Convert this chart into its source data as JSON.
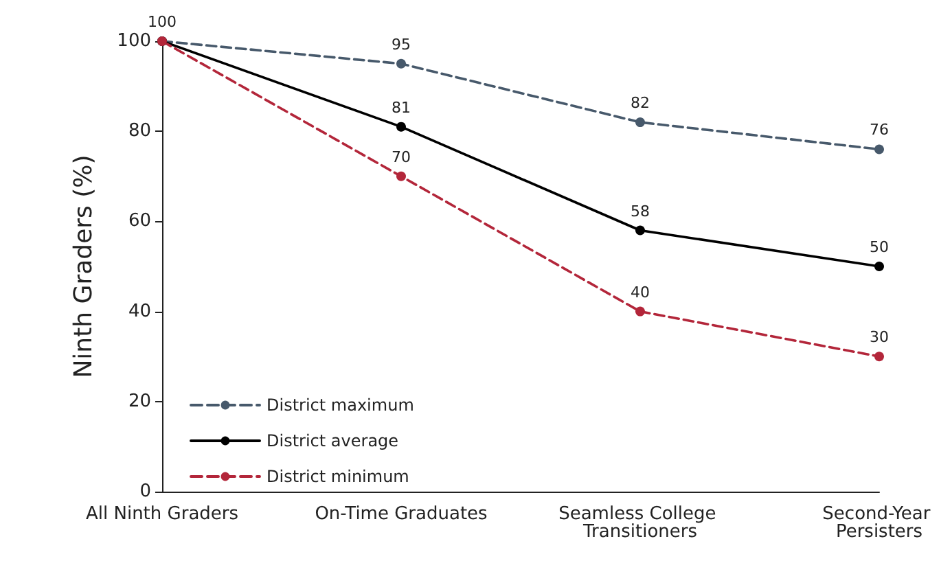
{
  "chart_data": {
    "type": "line",
    "ylabel": "Ninth Graders (%)",
    "categories": [
      "All Ninth Graders",
      "On-Time Graduates",
      "Seamless College Transitioners",
      "Second-Year Persisters"
    ],
    "series": [
      {
        "name": "District maximum",
        "color": "#47596b",
        "line_style": "dashed",
        "values": [
          100,
          95,
          82,
          76
        ],
        "value_labels": [
          "100",
          "95",
          "82",
          "76"
        ]
      },
      {
        "name": "District average",
        "color": "#000000",
        "line_style": "solid",
        "values": [
          100,
          81,
          58,
          50
        ],
        "value_labels": [
          null,
          "81",
          "58",
          "50"
        ]
      },
      {
        "name": "District minimum",
        "color": "#b3263a",
        "line_style": "dashed",
        "values": [
          100,
          70,
          40,
          30
        ],
        "value_labels": [
          null,
          "70",
          "40",
          "30"
        ]
      }
    ],
    "ylim": [
      0,
      100
    ],
    "yticks": [
      0,
      20,
      40,
      60,
      80,
      100
    ],
    "grid": false,
    "legend": "bottom left",
    "marker": "circle"
  }
}
